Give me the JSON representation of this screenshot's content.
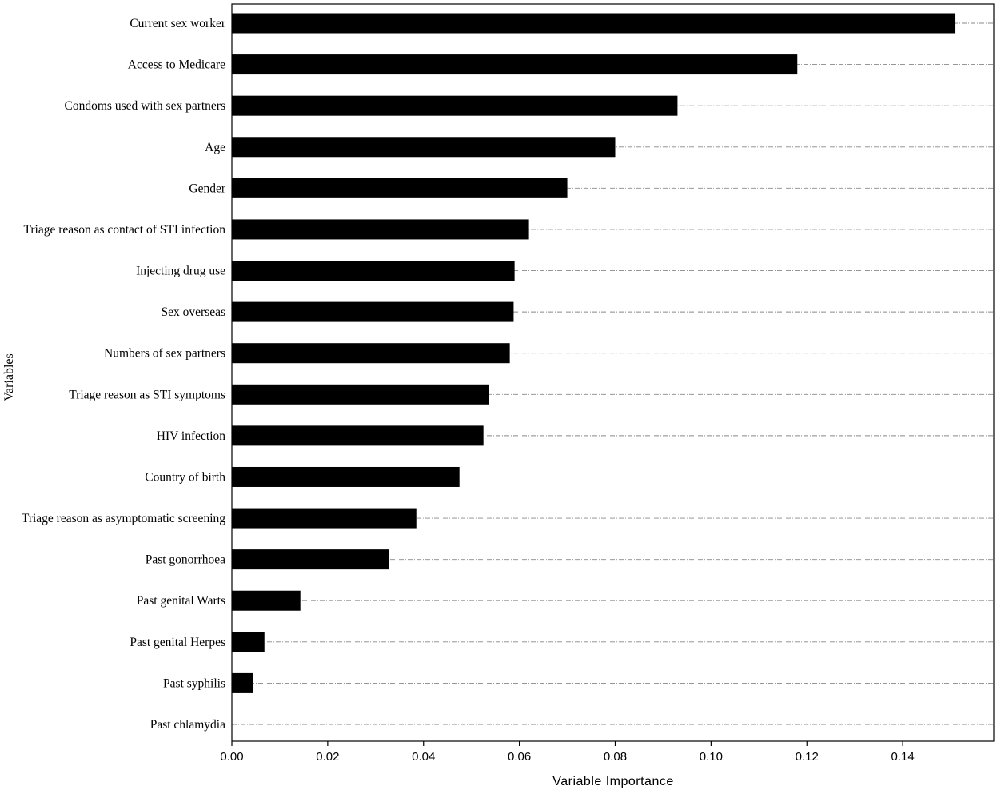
{
  "chart_data": {
    "type": "bar",
    "orientation": "horizontal",
    "categories": [
      "Current sex worker",
      "Access to Medicare",
      "Condoms used with sex partners",
      "Age",
      "Gender",
      "Triage reason as contact of STI infection",
      "Injecting drug use",
      "Sex overseas",
      "Numbers of sex partners",
      "Triage reason as STI symptoms",
      "HIV infection",
      "Country of birth",
      "Triage reason as  asymptomatic screening",
      "Past gonorrhoea",
      "Past genital Warts",
      "Past genital Herpes",
      "Past syphilis",
      "Past chlamydia"
    ],
    "values": [
      0.151,
      0.118,
      0.093,
      0.08,
      0.07,
      0.062,
      0.059,
      0.0588,
      0.058,
      0.0537,
      0.0525,
      0.0475,
      0.0385,
      0.0328,
      0.0143,
      0.0068,
      0.0045,
      0.0
    ],
    "xlabel": "Variable Importance",
    "ylabel": "Variables",
    "xlim": [
      0,
      0.159
    ],
    "xticks": [
      "0.00",
      "0.02",
      "0.04",
      "0.06",
      "0.08",
      "0.10",
      "0.12",
      "0.14"
    ],
    "grid": "horizontal dash-dot per category",
    "bar_color": "#000000",
    "grid_color": "#888888"
  }
}
